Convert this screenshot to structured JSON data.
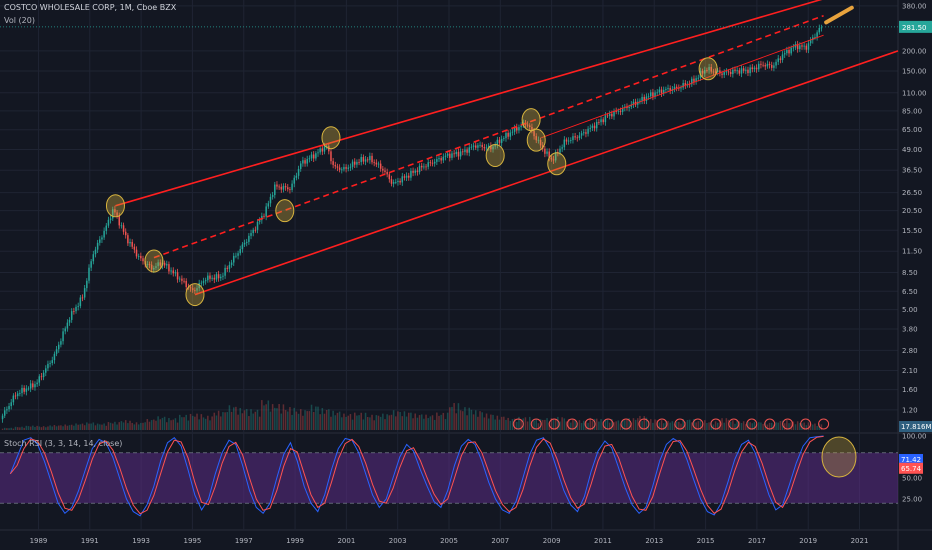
{
  "header": {
    "title": "COSTCO WHOLESALE CORP, 1M, Cboe BZX",
    "volume_indicator": "Vol (20)",
    "stoch_indicator": "Stoch RSI (3, 3, 14, 14, close)"
  },
  "chart_data": {
    "type": "candlestick",
    "scale": "log",
    "xlim": [
      1987.5,
      2022.5
    ],
    "ylim": [
      0.9,
      390
    ],
    "x_ticks": [
      "1989",
      "1991",
      "1993",
      "1995",
      "1997",
      "1999",
      "2001",
      "2003",
      "2005",
      "2007",
      "2009",
      "2011",
      "2013",
      "2015",
      "2017",
      "2019",
      "2021"
    ],
    "y_ticks": [
      "380.00",
      "200.00",
      "150.00",
      "110.00",
      "85.00",
      "65.00",
      "49.00",
      "36.50",
      "26.50",
      "20.50",
      "15.50",
      "11.50",
      "8.50",
      "6.50",
      "5.00",
      "3.80",
      "2.80",
      "2.10",
      "1.60",
      "1.20"
    ],
    "last_price": "281.50",
    "volume_value": "17.816M",
    "stoch_ticks": [
      "100.00",
      "50.00",
      "25.00"
    ],
    "stoch_k": "71.42",
    "stoch_d": "65.74",
    "stoch_bands": [
      20,
      80
    ],
    "price_path": [
      [
        1987.6,
        1.05
      ],
      [
        1988.2,
        1.5
      ],
      [
        1989.0,
        1.75
      ],
      [
        1989.7,
        2.6
      ],
      [
        1990.3,
        4.5
      ],
      [
        1990.8,
        6.0
      ],
      [
        1991.2,
        11
      ],
      [
        1991.7,
        16
      ],
      [
        1992.0,
        21
      ],
      [
        1992.5,
        14
      ],
      [
        1993.0,
        10.5
      ],
      [
        1993.5,
        9.0
      ],
      [
        1993.9,
        9.8
      ],
      [
        1994.5,
        8.0
      ],
      [
        1995.1,
        6.5
      ],
      [
        1995.6,
        7.8
      ],
      [
        1996.2,
        8.0
      ],
      [
        1996.8,
        11
      ],
      [
        1997.4,
        15
      ],
      [
        1997.9,
        20
      ],
      [
        1998.3,
        29
      ],
      [
        1998.9,
        28
      ],
      [
        1999.3,
        40
      ],
      [
        1999.9,
        46
      ],
      [
        2000.3,
        52
      ],
      [
        2000.6,
        38
      ],
      [
        2001.0,
        37
      ],
      [
        2001.6,
        42
      ],
      [
        2002.0,
        43
      ],
      [
        2002.5,
        37
      ],
      [
        2002.9,
        30
      ],
      [
        2003.5,
        34
      ],
      [
        2004.0,
        38
      ],
      [
        2004.6,
        42
      ],
      [
        2005.0,
        45
      ],
      [
        2005.6,
        47
      ],
      [
        2006.1,
        52
      ],
      [
        2006.7,
        50
      ],
      [
        2007.2,
        58
      ],
      [
        2007.7,
        66
      ],
      [
        2008.1,
        72
      ],
      [
        2008.4,
        60
      ],
      [
        2008.8,
        48
      ],
      [
        2009.1,
        42
      ],
      [
        2009.6,
        55
      ],
      [
        2010.2,
        60
      ],
      [
        2010.8,
        70
      ],
      [
        2011.3,
        80
      ],
      [
        2011.9,
        88
      ],
      [
        2012.5,
        98
      ],
      [
        2013.0,
        108
      ],
      [
        2013.5,
        115
      ],
      [
        2014.0,
        118
      ],
      [
        2014.6,
        130
      ],
      [
        2015.1,
        155
      ],
      [
        2015.7,
        145
      ],
      [
        2016.2,
        150
      ],
      [
        2016.8,
        152
      ],
      [
        2017.3,
        165
      ],
      [
        2017.7,
        160
      ],
      [
        2018.1,
        190
      ],
      [
        2018.6,
        215
      ],
      [
        2019.0,
        210
      ],
      [
        2019.3,
        245
      ],
      [
        2019.6,
        281
      ]
    ],
    "volume_levels": [
      0.04,
      0.06,
      0.08,
      0.07,
      0.09,
      0.1,
      0.12,
      0.14,
      0.12,
      0.15,
      0.18,
      0.14,
      0.2,
      0.25,
      0.22,
      0.28,
      0.3,
      0.26,
      0.35,
      0.45,
      0.4,
      0.38,
      0.55,
      0.48,
      0.42,
      0.38,
      0.46,
      0.4,
      0.35,
      0.3,
      0.32,
      0.28,
      0.3,
      0.36,
      0.34,
      0.3,
      0.28,
      0.32,
      0.5,
      0.42,
      0.36,
      0.3,
      0.26,
      0.22,
      0.24,
      0.2,
      0.22,
      0.24,
      0.2,
      0.18,
      0.22,
      0.2,
      0.18,
      0.22,
      0.26,
      0.2,
      0.18,
      0.16,
      0.2,
      0.18,
      0.16,
      0.22,
      0.18,
      0.16,
      0.15,
      0.14,
      0.18,
      0.16,
      0.14,
      0.12
    ],
    "stoch_values": [
      55,
      75,
      95,
      98,
      90,
      70,
      45,
      20,
      8,
      15,
      35,
      60,
      85,
      96,
      92,
      75,
      50,
      25,
      10,
      5,
      18,
      40,
      70,
      92,
      98,
      88,
      60,
      30,
      12,
      25,
      55,
      80,
      95,
      90,
      65,
      35,
      15,
      8,
      20,
      50,
      78,
      92,
      70,
      40,
      20,
      10,
      30,
      60,
      85,
      97,
      95,
      80,
      55,
      30,
      15,
      25,
      50,
      75,
      90,
      82,
      60,
      40,
      22,
      15,
      35,
      65,
      88,
      96,
      90,
      70,
      45,
      25,
      12,
      8,
      22,
      50,
      78,
      95,
      98,
      85,
      60,
      35,
      18,
      10,
      28,
      58,
      82,
      94,
      86,
      62,
      38,
      18,
      8,
      15,
      40,
      70,
      90,
      97,
      92,
      72,
      48,
      25,
      10,
      6,
      20,
      45,
      72,
      90,
      95,
      80,
      55,
      30,
      12,
      18,
      42,
      68,
      88,
      98,
      99,
      100
    ],
    "channels": [
      {
        "kind": "upper",
        "style": "solid",
        "from": [
          1992.0,
          22
        ],
        "to": [
          2019.6,
          420
        ]
      },
      {
        "kind": "lower",
        "style": "solid",
        "from": [
          1995.1,
          6.2
        ],
        "to": [
          2022.5,
          200
        ]
      },
      {
        "kind": "median",
        "style": "dashed",
        "from": [
          1993.5,
          10.5
        ],
        "to": [
          2019.6,
          330
        ]
      },
      {
        "kind": "median",
        "style": "solid",
        "from": [
          2008.6,
          58
        ],
        "to": [
          2019.6,
          250
        ]
      }
    ],
    "touch_points": [
      [
        1992.0,
        22
      ],
      [
        1993.5,
        10
      ],
      [
        1995.1,
        6.2
      ],
      [
        1998.6,
        20.5
      ],
      [
        2000.4,
        58
      ],
      [
        2006.8,
        45
      ],
      [
        2008.2,
        75
      ],
      [
        2008.4,
        56
      ],
      [
        2009.2,
        40
      ],
      [
        2015.1,
        155
      ]
    ],
    "projection": {
      "from": [
        2019.7,
        300
      ],
      "to": [
        2020.7,
        370
      ]
    }
  },
  "colors": {
    "background": "#131722",
    "up": "#26a69a",
    "down": "#ef5350",
    "channel": "#ff1f1f",
    "touch": "#d6b33e",
    "stoch_band": "#5b2b85",
    "stoch_k": "#2962ff",
    "stoch_d": "#ff5252",
    "text": "#b2b5be"
  }
}
